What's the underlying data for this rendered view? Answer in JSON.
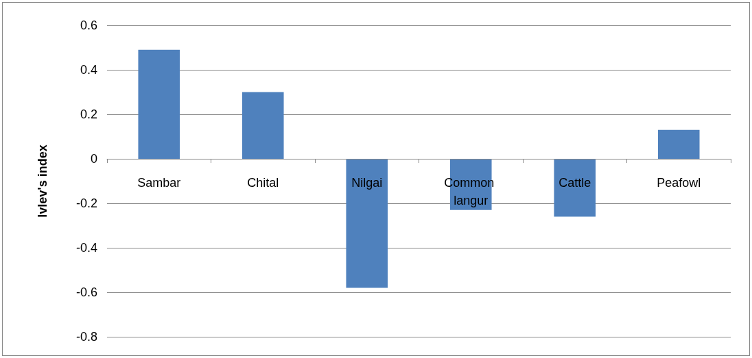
{
  "chart_data": {
    "type": "bar",
    "ylabel": "Ivlev's index",
    "categories": [
      "Sambar",
      "Chital",
      "Nilgai",
      "Common langur",
      "Cattle",
      "Peafowl"
    ],
    "values": [
      0.49,
      0.3,
      -0.58,
      -0.23,
      -0.26,
      0.13
    ],
    "color": "#4f81bd",
    "ylim": [
      -0.8,
      0.6
    ],
    "yticks": [
      -0.8,
      -0.6,
      -0.4,
      -0.2,
      0,
      0.2,
      0.4,
      0.6
    ],
    "grid": "y"
  }
}
